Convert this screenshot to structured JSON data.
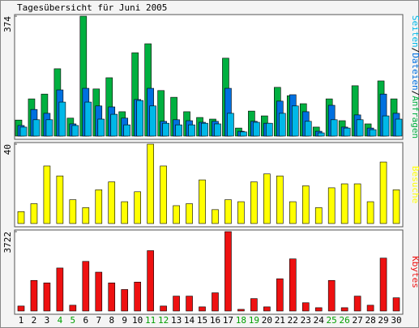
{
  "title": "Tagesübersicht für Juni 2005",
  "legend_separator": "/",
  "chart_data": [
    {
      "type": "bar",
      "categories": [
        "1",
        "2",
        "3",
        "4",
        "5",
        "6",
        "7",
        "8",
        "9",
        "10",
        "11",
        "12",
        "13",
        "14",
        "15",
        "16",
        "17",
        "18",
        "19",
        "20",
        "21",
        "22",
        "23",
        "24",
        "25",
        "26",
        "27",
        "28",
        "29",
        "30"
      ],
      "category_colors": [
        "#000000",
        "#000000",
        "#000000",
        "#00a000",
        "#00a000",
        "#000000",
        "#000000",
        "#000000",
        "#000000",
        "#000000",
        "#00a000",
        "#00a000",
        "#000000",
        "#000000",
        "#000000",
        "#000000",
        "#000000",
        "#00a000",
        "#00a000",
        "#000000",
        "#000000",
        "#000000",
        "#000000",
        "#000000",
        "#00a000",
        "#00a000",
        "#000000",
        "#000000",
        "#000000",
        "#000000"
      ],
      "ylim": [
        0,
        374
      ],
      "yticks": [
        374
      ],
      "series": [
        {
          "name": "Anfragen",
          "color": "#00b040",
          "values": [
            50,
            116,
            131,
            210,
            56,
            374,
            147,
            182,
            76,
            260,
            288,
            142,
            121,
            76,
            58,
            53,
            243,
            25,
            78,
            63,
            152,
            126,
            101,
            28,
            116,
            48,
            157,
            38,
            172,
            116
          ]
        },
        {
          "name": "Dateien",
          "color": "#0070e0",
          "values": [
            33,
            83,
            71,
            144,
            38,
            149,
            94,
            91,
            56,
            114,
            149,
            46,
            51,
            48,
            43,
            46,
            149,
            15,
            46,
            40,
            109,
            129,
            76,
            15,
            96,
            28,
            66,
            25,
            131,
            71
          ]
        },
        {
          "name": "Seiten",
          "color": "#00b8e8",
          "values": [
            28,
            51,
            51,
            106,
            33,
            106,
            53,
            68,
            35,
            111,
            94,
            40,
            35,
            35,
            40,
            38,
            71,
            13,
            43,
            40,
            71,
            94,
            46,
            10,
            51,
            25,
            51,
            20,
            63,
            53
          ]
        }
      ]
    },
    {
      "type": "bar",
      "categories": [
        "1",
        "2",
        "3",
        "4",
        "5",
        "6",
        "7",
        "8",
        "9",
        "10",
        "11",
        "12",
        "13",
        "14",
        "15",
        "16",
        "17",
        "18",
        "19",
        "20",
        "21",
        "22",
        "23",
        "24",
        "25",
        "26",
        "27",
        "28",
        "29",
        "30"
      ],
      "ylim": [
        0,
        40
      ],
      "yticks": [
        40
      ],
      "series": [
        {
          "name": "Besuche",
          "color": "#ffff00",
          "values": [
            6,
            10,
            29,
            24,
            12,
            8,
            17,
            21,
            11,
            16,
            40,
            29,
            9,
            10,
            22,
            7,
            12,
            11,
            21,
            25,
            24,
            11,
            19,
            8,
            18,
            20,
            20,
            11,
            31,
            17
          ]
        }
      ]
    },
    {
      "type": "bar",
      "categories": [
        "1",
        "2",
        "3",
        "4",
        "5",
        "6",
        "7",
        "8",
        "9",
        "10",
        "11",
        "12",
        "13",
        "14",
        "15",
        "16",
        "17",
        "18",
        "19",
        "20",
        "21",
        "22",
        "23",
        "24",
        "25",
        "26",
        "27",
        "28",
        "29",
        "30"
      ],
      "ylim": [
        0,
        3722
      ],
      "yticks": [
        3722
      ],
      "series": [
        {
          "name": "Kbytes",
          "color": "#ee1111",
          "values": [
            233,
            1434,
            1318,
            2016,
            271,
            2326,
            1822,
            1318,
            1008,
            1357,
            2830,
            233,
            698,
            698,
            194,
            853,
            3722,
            78,
            582,
            194,
            1512,
            2443,
            388,
            155,
            1434,
            155,
            698,
            271,
            2481,
            620
          ]
        }
      ]
    }
  ]
}
